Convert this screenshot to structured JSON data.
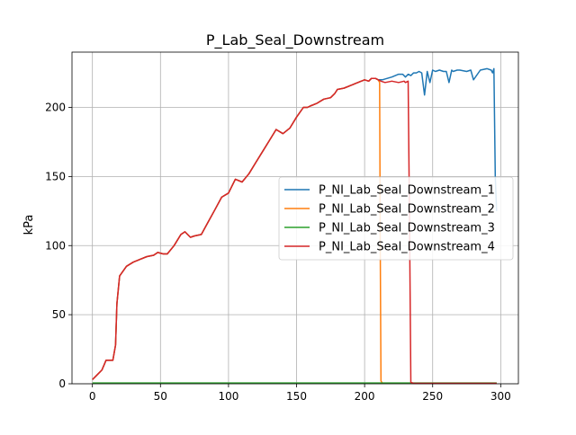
{
  "chart_data": {
    "type": "line",
    "title": "P_Lab_Seal_Downstream",
    "xlabel": "",
    "ylabel": "kPa",
    "xlim": [
      -15,
      313
    ],
    "ylim": [
      0,
      240
    ],
    "xticks": [
      0,
      50,
      100,
      150,
      200,
      250,
      300
    ],
    "yticks": [
      0,
      50,
      100,
      150,
      200
    ],
    "grid": true,
    "legend_position": "center-right",
    "series": [
      {
        "name": "P_NI_Lab_Seal_Downstream_1",
        "color": "#1f77b4",
        "x": [
          0,
          3,
          7,
          10,
          15,
          17,
          18,
          20,
          25,
          30,
          35,
          40,
          45,
          48,
          52,
          55,
          60,
          65,
          68,
          72,
          75,
          80,
          85,
          90,
          95,
          100,
          102,
          105,
          110,
          115,
          120,
          125,
          130,
          135,
          140,
          145,
          150,
          155,
          158,
          160,
          165,
          170,
          175,
          178,
          180,
          185,
          190,
          195,
          200,
          203,
          205,
          208,
          210,
          213,
          220,
          225,
          228,
          230,
          232,
          234,
          236,
          238,
          240,
          242,
          244,
          246,
          248,
          250,
          252,
          255,
          258,
          260,
          262,
          264,
          265,
          268,
          270,
          275,
          278,
          280,
          285,
          290,
          293,
          294,
          295,
          296,
          297
        ],
        "y": [
          3,
          6,
          10,
          17,
          17,
          28,
          58,
          78,
          85,
          88,
          90,
          92,
          93,
          95,
          94,
          94,
          100,
          108,
          110,
          106,
          107,
          108,
          117,
          126,
          135,
          138,
          142,
          148,
          146,
          152,
          160,
          168,
          176,
          184,
          181,
          185,
          193,
          200,
          200,
          201,
          203,
          206,
          207,
          210,
          213,
          214,
          216,
          218,
          220,
          219,
          221,
          221,
          220,
          220,
          222,
          224,
          224,
          222,
          224,
          223,
          225,
          225,
          226,
          225,
          209,
          226,
          218,
          227,
          226,
          227,
          226,
          226,
          218,
          227,
          226,
          227,
          227,
          226,
          227,
          220,
          227,
          228,
          227,
          225,
          228,
          150,
          125
        ]
      },
      {
        "name": "P_NI_Lab_Seal_Downstream_2",
        "color": "#ff7f0e",
        "x": [
          0,
          3,
          7,
          10,
          15,
          17,
          18,
          20,
          25,
          30,
          35,
          40,
          45,
          48,
          52,
          55,
          60,
          65,
          68,
          72,
          75,
          80,
          85,
          90,
          95,
          100,
          102,
          105,
          110,
          115,
          120,
          125,
          130,
          135,
          140,
          145,
          150,
          155,
          158,
          160,
          165,
          170,
          175,
          178,
          180,
          185,
          190,
          195,
          200,
          203,
          205,
          208,
          210,
          211,
          211.5,
          212,
          213,
          230,
          250,
          297
        ],
        "y": [
          3,
          6,
          10,
          17,
          17,
          28,
          58,
          78,
          85,
          88,
          90,
          92,
          93,
          95,
          94,
          94,
          100,
          108,
          110,
          106,
          107,
          108,
          117,
          126,
          135,
          138,
          142,
          148,
          146,
          152,
          160,
          168,
          176,
          184,
          181,
          185,
          193,
          200,
          200,
          201,
          203,
          206,
          207,
          210,
          213,
          214,
          216,
          218,
          220,
          219,
          221,
          221,
          220,
          218,
          100,
          2,
          0.5,
          0.5,
          0.5,
          0.5
        ]
      },
      {
        "name": "P_NI_Lab_Seal_Downstream_3",
        "color": "#2ca02c",
        "x": [
          0,
          50,
          100,
          150,
          200,
          250,
          297
        ],
        "y": [
          0.6,
          0.6,
          0.6,
          0.6,
          0.6,
          0.6,
          0.6
        ]
      },
      {
        "name": "P_NI_Lab_Seal_Downstream_4",
        "color": "#d62728",
        "x": [
          0,
          3,
          7,
          10,
          15,
          17,
          18,
          20,
          25,
          30,
          35,
          40,
          45,
          48,
          52,
          55,
          60,
          65,
          68,
          72,
          75,
          80,
          85,
          90,
          95,
          100,
          102,
          105,
          110,
          115,
          120,
          125,
          130,
          135,
          140,
          145,
          150,
          155,
          158,
          160,
          165,
          170,
          175,
          178,
          180,
          185,
          190,
          195,
          200,
          203,
          205,
          208,
          210,
          212,
          215,
          220,
          225,
          229,
          230,
          232,
          233,
          234,
          236,
          250,
          297
        ],
        "y": [
          3,
          6,
          10,
          17,
          17,
          28,
          58,
          78,
          85,
          88,
          90,
          92,
          93,
          95,
          94,
          94,
          100,
          108,
          110,
          106,
          107,
          108,
          117,
          126,
          135,
          138,
          142,
          148,
          146,
          152,
          160,
          168,
          176,
          184,
          181,
          185,
          193,
          200,
          200,
          201,
          203,
          206,
          207,
          210,
          213,
          214,
          216,
          218,
          220,
          219,
          221,
          221,
          220,
          219,
          218,
          219,
          218,
          219,
          218,
          219,
          120,
          1,
          0.3,
          0.3,
          0.3
        ]
      }
    ]
  }
}
